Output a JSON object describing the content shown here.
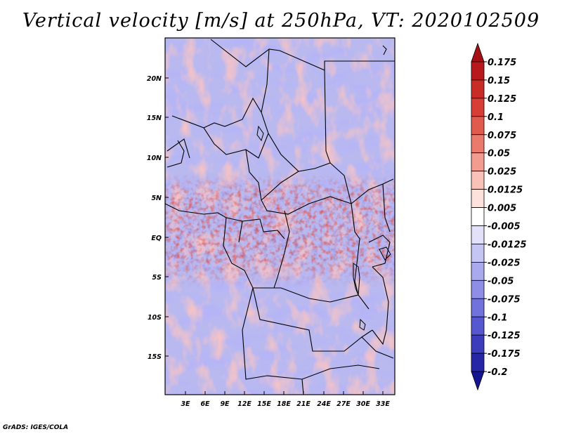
{
  "title": "Vertical velocity [m/s] at 250hPa, VT: 2020102509",
  "footer": "GrADS: IGES/COLA",
  "chart_data": {
    "type": "heatmap",
    "variable": "Vertical velocity",
    "units": "m/s",
    "level": "250hPa",
    "valid_time": "2020102509",
    "x_ticks": [
      "3E",
      "6E",
      "9E",
      "12E",
      "15E",
      "18E",
      "21E",
      "24E",
      "27E",
      "30E",
      "33E"
    ],
    "y_ticks": [
      "20N",
      "15N",
      "10N",
      "5N",
      "EQ",
      "5S",
      "10S",
      "15S"
    ],
    "colorbar": {
      "labels": [
        "0.175",
        "0.15",
        "0.125",
        "0.1",
        "0.075",
        "0.05",
        "0.025",
        "0.0125",
        "0.005",
        "-0.005",
        "-0.0125",
        "-0.025",
        "-0.05",
        "-0.075",
        "-0.1",
        "-0.125",
        "-0.175",
        "-0.2"
      ],
      "colors": [
        "#a50f15",
        "#b8191c",
        "#c92b27",
        "#d63e36",
        "#e15a4e",
        "#ea7a6c",
        "#f29c8f",
        "#f8c2b8",
        "#fde2dc",
        "#ffffff",
        "#e1e1fa",
        "#c5c5f4",
        "#a9a9ee",
        "#8e8ee6",
        "#7272dd",
        "#5757cf",
        "#3c3cbc",
        "#2626a6",
        "#15158f"
      ]
    }
  }
}
